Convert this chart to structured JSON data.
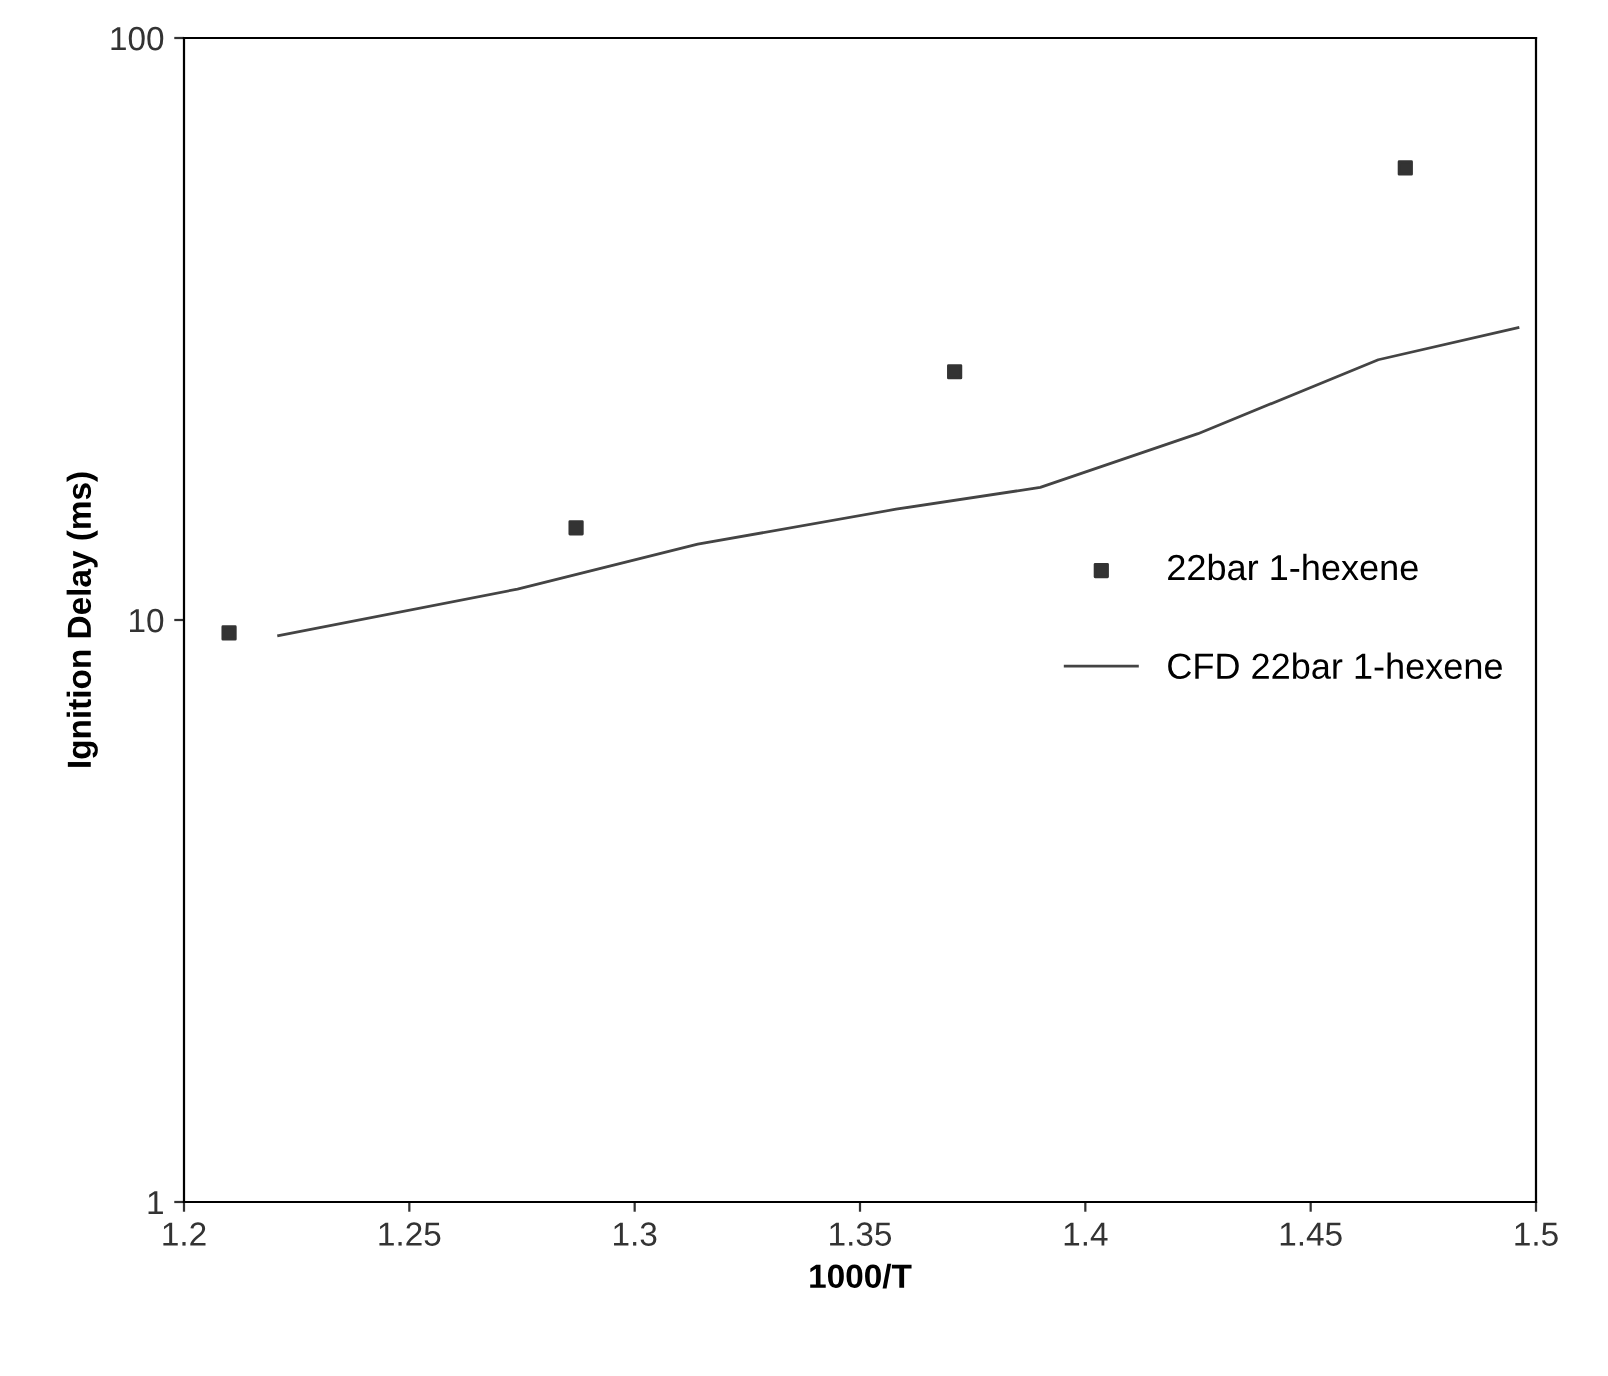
{
  "chart_data": {
    "type": "scatter",
    "xlabel": "1000/T",
    "ylabel": "Ignition Delay (ms)",
    "log": "y",
    "xlim": [
      1.2,
      1.5
    ],
    "xticks": [
      1.2,
      1.25,
      1.3,
      1.35,
      1.4,
      1.45,
      1.5
    ],
    "ylim": [
      1,
      100
    ],
    "yticks": [
      1,
      10,
      100
    ],
    "grid": false,
    "legend": "right",
    "series": [
      {
        "name": "22bar 1-hexene",
        "marker": "square",
        "color": "#333333",
        "x": [
          1.21,
          1.287,
          1.371,
          1.471
        ],
        "values": [
          9.5,
          14.4,
          26.7,
          59.8
        ]
      },
      {
        "name": "CFD 22bar 1-hexene",
        "type": "line",
        "marker": "none",
        "line_style": "solid",
        "color": "#444444",
        "x": [
          1.221,
          1.274,
          1.314,
          1.358,
          1.39,
          1.425,
          1.465,
          1.496
        ],
        "values": [
          9.4,
          11.3,
          13.5,
          15.5,
          16.9,
          20.9,
          28.0,
          31.8
        ]
      }
    ]
  }
}
